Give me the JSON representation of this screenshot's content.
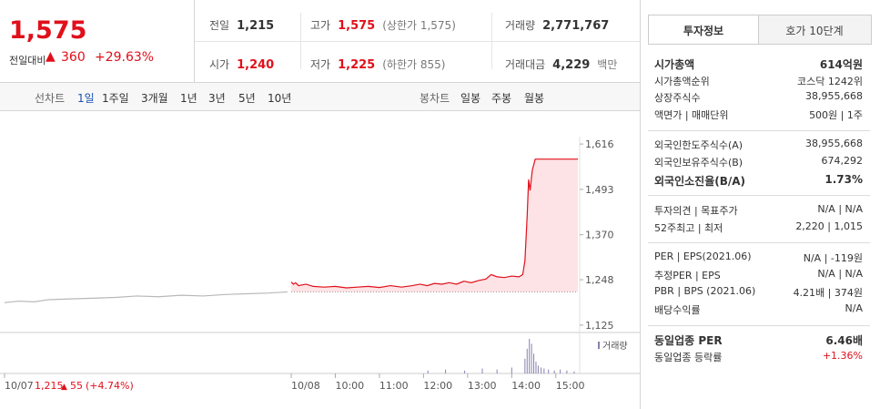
{
  "quote": {
    "price": "1,575",
    "change_label": "전일대비",
    "change": "360",
    "change_pct": "+29.63%"
  },
  "summary": [
    {
      "label": "전일",
      "value": "1,215"
    },
    {
      "label": "고가",
      "value": "1,575",
      "note": "(상한가 1,575)",
      "color": "#e0101b"
    },
    {
      "label": "거래량",
      "value": "2,771,767"
    },
    {
      "label": "시가",
      "value": "1,240",
      "color": "#e0101b"
    },
    {
      "label": "저가",
      "value": "1,225",
      "note": "(하한가 855)",
      "color": "#e0101b"
    },
    {
      "label": "거래대금",
      "value": "4,229",
      "note": "백만"
    }
  ],
  "nav": {
    "line_label": "선차트",
    "periods": [
      "1일",
      "1주일",
      "3개월",
      "1년",
      "3년",
      "5년",
      "10년"
    ],
    "candle_label": "봉차트",
    "candles": [
      "일봉",
      "주봉",
      "월봉"
    ]
  },
  "chart_data": {
    "type": "line",
    "prev_day": {
      "close": "1,215",
      "change": "55",
      "change_pct": "(+4.74%)"
    },
    "xlim": [
      -390,
      390
    ],
    "xticks": [
      {
        "value": -390,
        "label": "10/07"
      },
      {
        "value": 0,
        "label": "10/08"
      },
      {
        "value": 60,
        "label": "10:00"
      },
      {
        "value": 120,
        "label": "11:00"
      },
      {
        "value": 180,
        "label": "12:00"
      },
      {
        "value": 240,
        "label": "13:00"
      },
      {
        "value": 300,
        "label": "14:00"
      },
      {
        "value": 360,
        "label": "15:00"
      }
    ],
    "ylim": [
      1105,
      1636
    ],
    "yticks": [
      {
        "value": 1616,
        "label": "1,616"
      },
      {
        "value": 1493,
        "label": "1,493"
      },
      {
        "value": 1370,
        "label": "1,370"
      },
      {
        "value": 1248,
        "label": "1,248"
      },
      {
        "value": 1125,
        "label": "1,125"
      }
    ],
    "ref_line": 1215,
    "series": [
      {
        "color": "#b8b8b8",
        "x": [
          -390,
          -370,
          -350,
          -330,
          -300,
          -270,
          -240,
          -210,
          -180,
          -150,
          -120,
          -90,
          -60,
          -30,
          -5
        ],
        "values": [
          1186,
          1190,
          1188,
          1194,
          1196,
          1198,
          1200,
          1204,
          1202,
          1206,
          1204,
          1208,
          1210,
          1212,
          1215
        ]
      },
      {
        "color": "#e0101b",
        "fill": "#fde3e5",
        "x": [
          0,
          3,
          6,
          10,
          20,
          30,
          45,
          60,
          75,
          90,
          105,
          120,
          135,
          150,
          165,
          175,
          185,
          195,
          205,
          215,
          225,
          235,
          245,
          255,
          265,
          272,
          280,
          290,
          300,
          310,
          315,
          318,
          321,
          323,
          325,
          328,
          332,
          345,
          390
        ],
        "values": [
          1242,
          1236,
          1240,
          1232,
          1236,
          1230,
          1228,
          1230,
          1226,
          1228,
          1230,
          1227,
          1232,
          1228,
          1232,
          1236,
          1232,
          1238,
          1236,
          1240,
          1236,
          1244,
          1240,
          1246,
          1250,
          1262,
          1256,
          1254,
          1258,
          1256,
          1262,
          1300,
          1420,
          1520,
          1490,
          1545,
          1575,
          1575,
          1575
        ]
      }
    ],
    "volume": {
      "name": "거래량",
      "color": "#8a80b0",
      "x": [
        186,
        210,
        236,
        260,
        280,
        300,
        318,
        321,
        324,
        327,
        330,
        333,
        336,
        340,
        344,
        350,
        358,
        366,
        375,
        385
      ],
      "values": [
        3,
        4,
        3,
        5,
        4,
        6,
        15,
        25,
        35,
        30,
        20,
        12,
        8,
        6,
        5,
        4,
        3,
        4,
        3,
        2
      ]
    }
  },
  "info": {
    "tabs": [
      "투자정보",
      "호가 10단계"
    ],
    "groups": [
      [
        {
          "label": "시가총액",
          "value": "614억원",
          "bold": true
        },
        {
          "label": "시가총액순위",
          "value": "코스닥 1242위"
        },
        {
          "label": "상장주식수",
          "value": "38,955,668"
        },
        {
          "label": "액면가 | 매매단위",
          "value": "500원 | 1주"
        }
      ],
      [
        {
          "label": "외국인한도주식수(A)",
          "value": "38,955,668"
        },
        {
          "label": "외국인보유주식수(B)",
          "value": "674,292"
        },
        {
          "label": "외국인소진율(B/A)",
          "value": "1.73%",
          "bold": true
        }
      ],
      [
        {
          "label": "투자의견 | 목표주가",
          "value": "N/A | N/A"
        },
        {
          "label": "52주최고 | 최저",
          "value": "2,220 | 1,015"
        }
      ],
      [
        {
          "label": "PER | EPS(2021.06)",
          "value": "N/A | -119원"
        },
        {
          "label": "추정PER | EPS",
          "value": "N/A | N/A"
        },
        {
          "label": "PBR | BPS (2021.06)",
          "value": "4.21배 | 374원"
        },
        {
          "label": "배당수익률",
          "value": "N/A"
        }
      ],
      [
        {
          "label": "동일업종 PER",
          "value": "6.46배",
          "bold": true
        },
        {
          "label": "동일업종 등락률",
          "value": "+1.36%",
          "color": "#e0101b"
        }
      ]
    ]
  }
}
